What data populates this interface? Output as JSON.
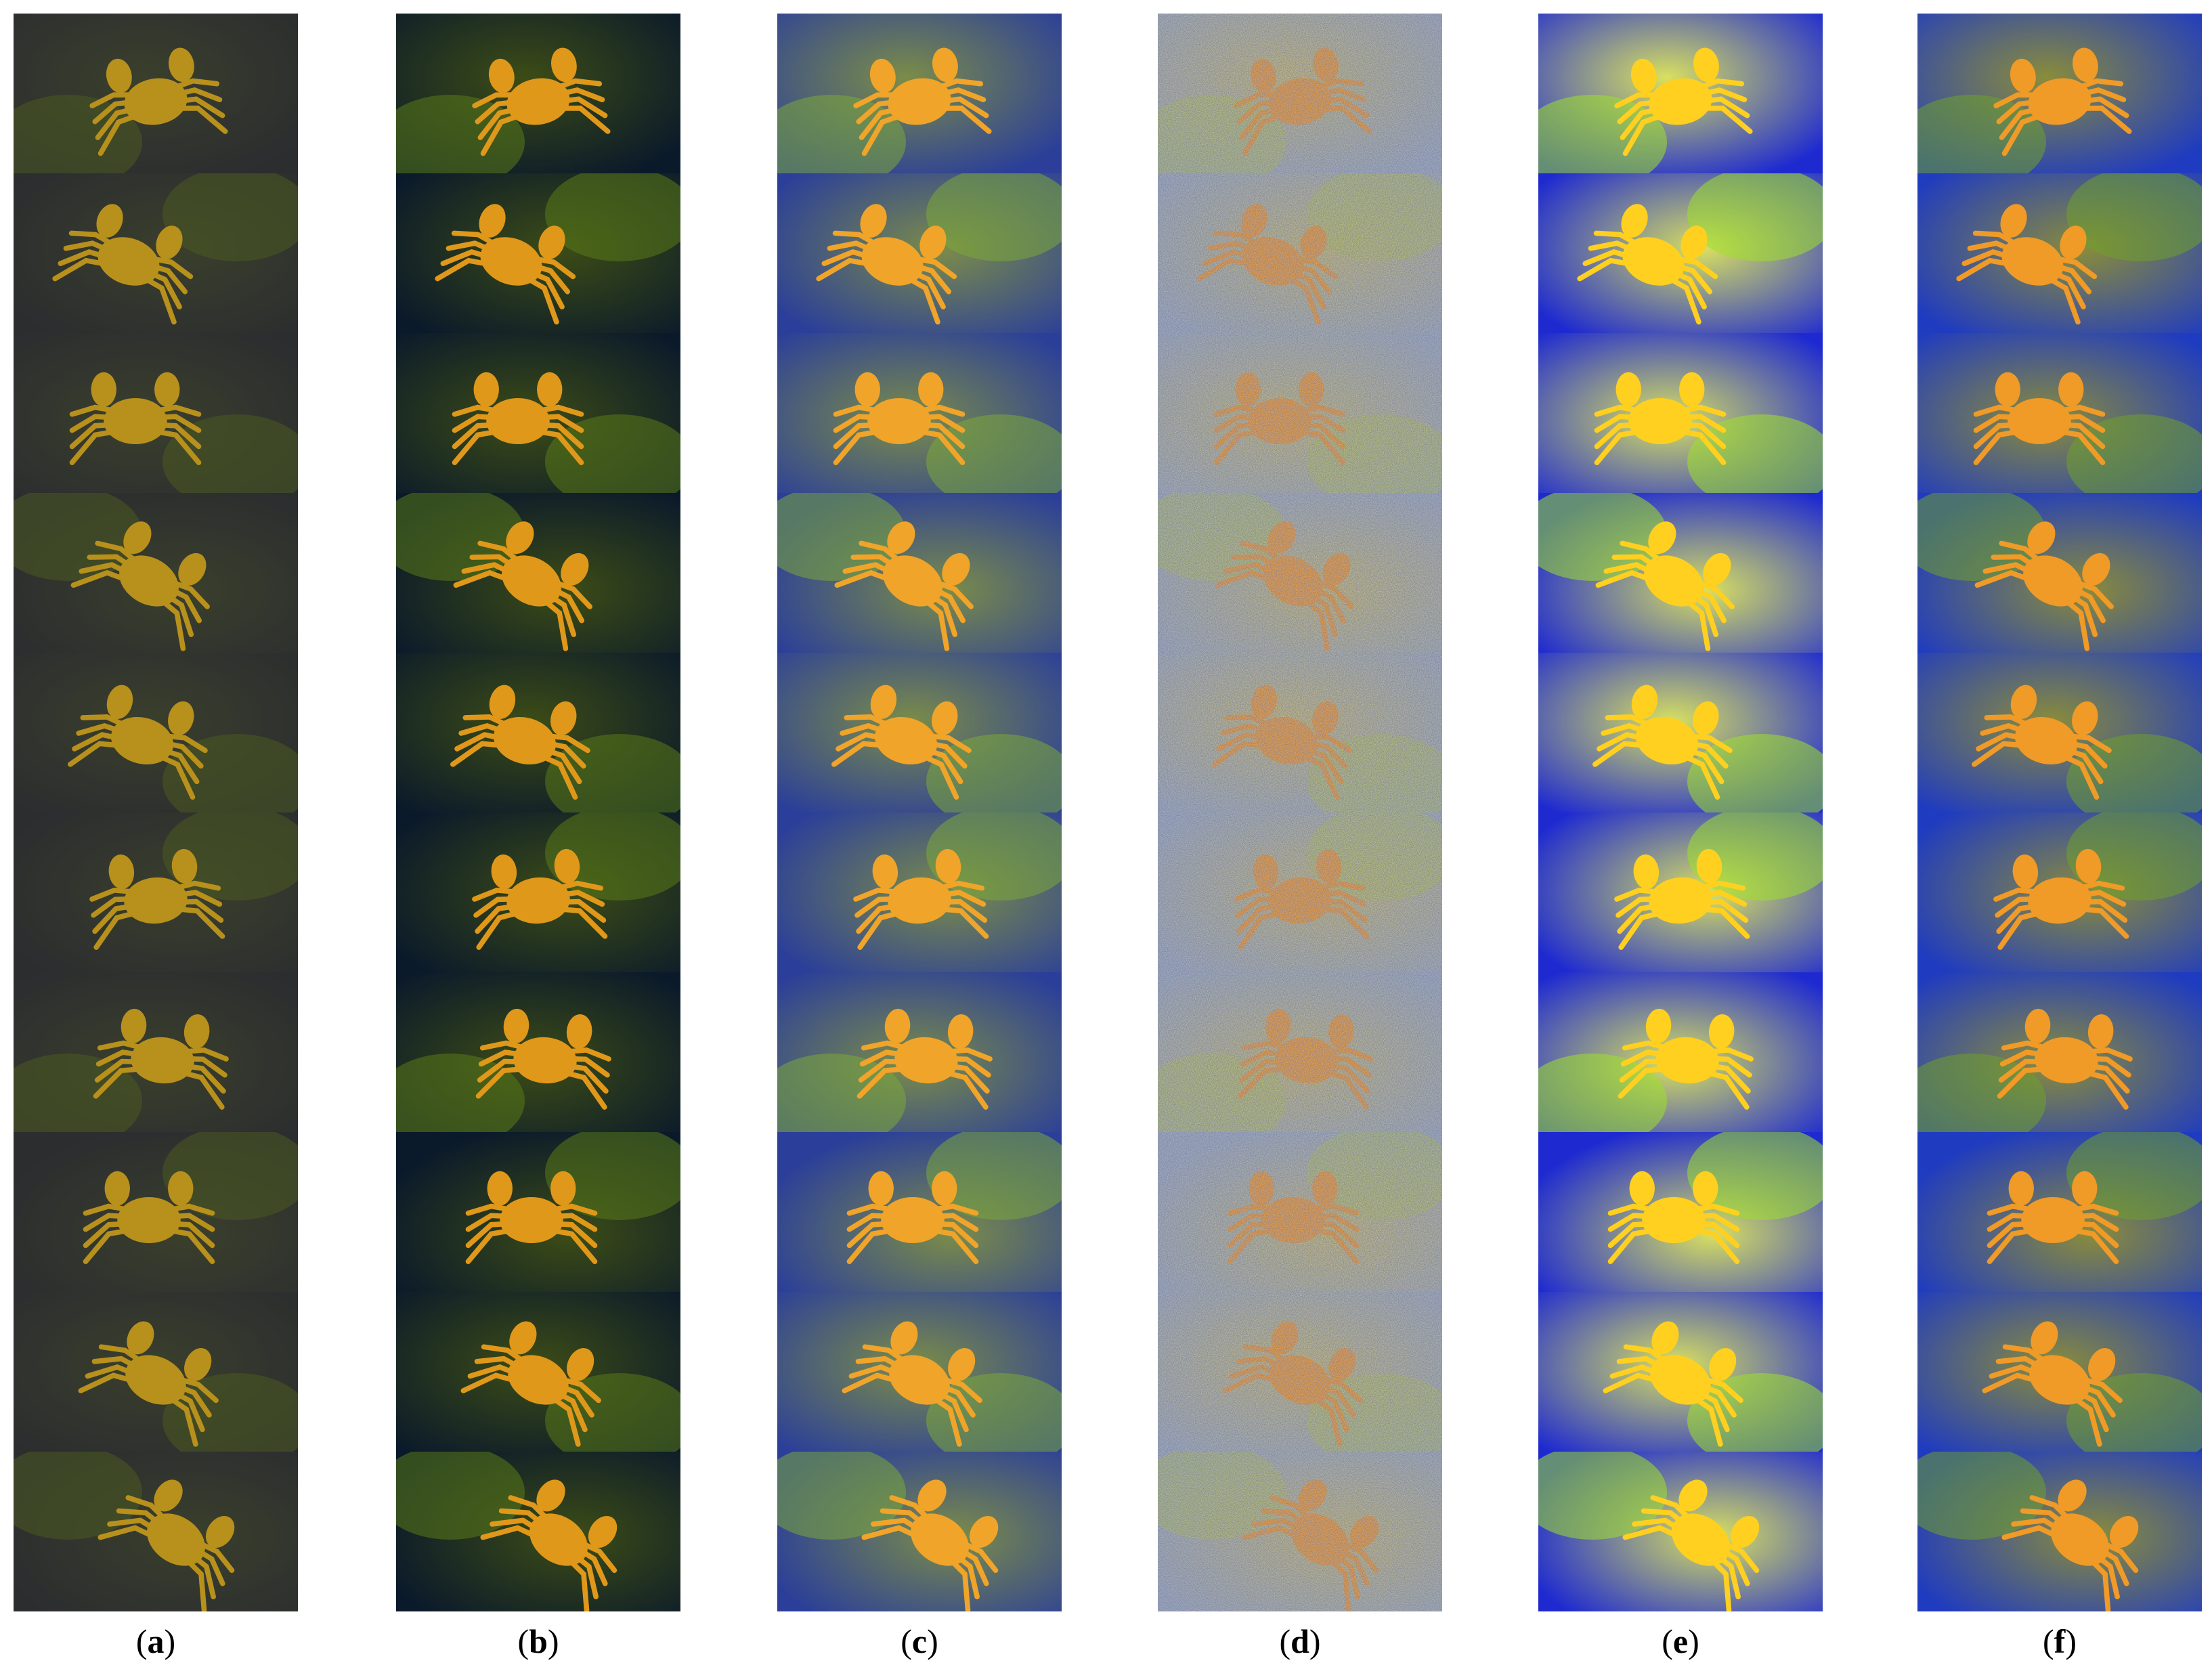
{
  "figure": {
    "rows": 10,
    "columns": [
      {
        "id": "a",
        "label_open": "(",
        "label_letter": "a",
        "label_close": ")",
        "palette": {
          "bg": "#2b2d2f",
          "bg2": "#3a3f2c",
          "crab": "#b8901c",
          "veg": "#4a5a20",
          "noise": 0
        }
      },
      {
        "id": "b",
        "label_open": "(",
        "label_letter": "b",
        "label_close": ")",
        "palette": {
          "bg": "#0b1a2a",
          "bg2": "#3c4c16",
          "crab": "#e0981a",
          "veg": "#5a7a18",
          "noise": 0
        }
      },
      {
        "id": "c",
        "label_open": "(",
        "label_letter": "c",
        "label_close": ")",
        "palette": {
          "bg": "#2a3e9a",
          "bg2": "#7b8c48",
          "crab": "#f0a42a",
          "veg": "#7ca83a",
          "noise": 0
        }
      },
      {
        "id": "d",
        "label_open": "(",
        "label_letter": "d",
        "label_close": ")",
        "palette": {
          "bg": "#9fb0c8",
          "bg2": "#c9c07a",
          "crab": "#f0a040",
          "veg": "#b8c860",
          "noise": 1
        }
      },
      {
        "id": "e",
        "label_open": "(",
        "label_letter": "e",
        "label_close": ")",
        "palette": {
          "bg": "#1e2ad0",
          "bg2": "#d8e060",
          "crab": "#ffd020",
          "veg": "#9ee02a",
          "noise": 0
        }
      },
      {
        "id": "f",
        "label_open": "(",
        "label_letter": "f",
        "label_close": ")",
        "palette": {
          "bg": "#1f3bc0",
          "bg2": "#8a8c3a",
          "crab": "#f09a28",
          "veg": "#6fa02c",
          "noise": 0
        }
      }
    ]
  }
}
